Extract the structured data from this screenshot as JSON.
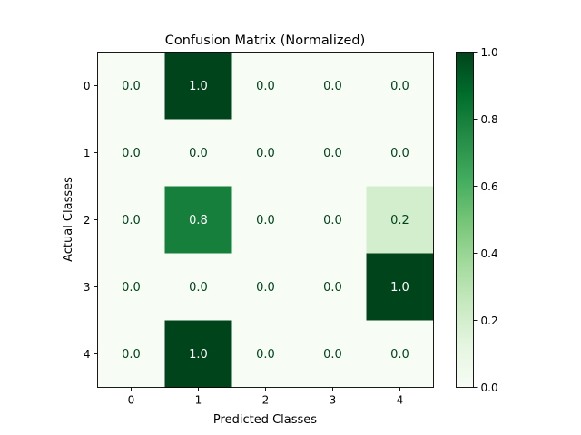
{
  "chart_data": {
    "type": "heatmap",
    "title": "Confusion Matrix (Normalized)",
    "xlabel": "Predicted Classes",
    "ylabel": "Actual Classes",
    "x_categories": [
      "0",
      "1",
      "2",
      "3",
      "4"
    ],
    "y_categories": [
      "0",
      "1",
      "2",
      "3",
      "4"
    ],
    "values": [
      [
        0.0,
        1.0,
        0.0,
        0.0,
        0.0
      ],
      [
        0.0,
        0.0,
        0.0,
        0.0,
        0.0
      ],
      [
        0.0,
        0.8,
        0.0,
        0.0,
        0.2
      ],
      [
        0.0,
        0.0,
        0.0,
        0.0,
        1.0
      ],
      [
        0.0,
        1.0,
        0.0,
        0.0,
        0.0
      ]
    ],
    "cell_labels": [
      [
        "0.0",
        "1.0",
        "0.0",
        "0.0",
        "0.0"
      ],
      [
        "0.0",
        "0.0",
        "0.0",
        "0.0",
        "0.0"
      ],
      [
        "0.0",
        "0.8",
        "0.0",
        "0.0",
        "0.2"
      ],
      [
        "0.0",
        "0.0",
        "0.0",
        "0.0",
        "1.0"
      ],
      [
        "0.0",
        "1.0",
        "0.0",
        "0.0",
        "0.0"
      ]
    ],
    "colormap": "Greens",
    "colormap_low": "#f7fcf5",
    "colormap_high": "#00441b",
    "colorbar": {
      "range": [
        0.0,
        1.0
      ],
      "ticks": [
        "0.0",
        "0.2",
        "0.4",
        "0.6",
        "0.8",
        "1.0"
      ]
    },
    "grid": false
  }
}
